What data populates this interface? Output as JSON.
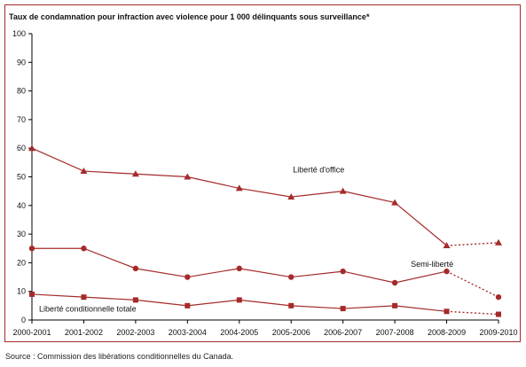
{
  "chart_data": {
    "type": "line",
    "title": "Taux de condamnation pour infraction avec violence pour 1 000 délinquants sous surveillance*",
    "xlabel": "",
    "ylabel": "",
    "categories": [
      "2000-2001",
      "2001-2002",
      "2002-2003",
      "2003-2004",
      "2004-2005",
      "2005-2006",
      "2006-2007",
      "2007-2008",
      "2008-2009",
      "2009-2010"
    ],
    "ylim": [
      0,
      100
    ],
    "yticks": [
      "0",
      "10",
      "20",
      "30",
      "40",
      "50",
      "60",
      "70",
      "80",
      "90",
      "100"
    ],
    "grid": false,
    "dotted_last_segment": true,
    "series": [
      {
        "name": "Liberté d'office",
        "marker": "triangle",
        "color": "#a52a2a",
        "values": [
          60,
          52,
          51,
          50,
          46,
          43,
          45,
          41,
          26,
          27
        ]
      },
      {
        "name": "Semi-liberté",
        "marker": "circle",
        "color": "#a52a2a",
        "values": [
          25,
          25,
          18,
          15,
          18,
          15,
          17,
          13,
          17,
          8
        ]
      },
      {
        "name": "Liberté conditionnelle totale",
        "marker": "square",
        "color": "#a52a2a",
        "values": [
          9,
          8,
          7,
          5,
          7,
          5,
          4,
          5,
          3,
          2
        ]
      }
    ]
  },
  "source_note": "Source : Commission des libérations conditionnelles du Canada."
}
